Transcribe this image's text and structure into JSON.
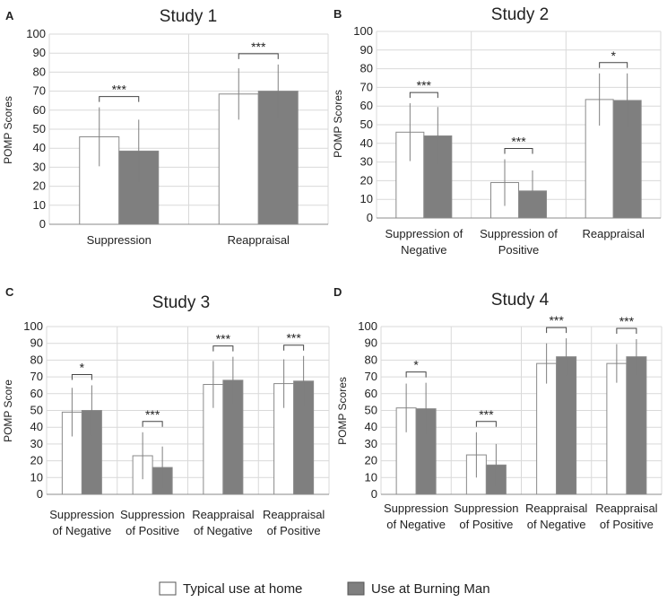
{
  "colors": {
    "home_fill": "#ffffff",
    "bm_fill": "#7f7f7f",
    "bar_stroke": "#8a8a8a"
  },
  "legend": [
    {
      "label": "Typical use at home",
      "color": "#ffffff"
    },
    {
      "label": "Use at Burning Man",
      "color": "#7f7f7f"
    }
  ],
  "chart_data": [
    {
      "panel": "A",
      "type": "bar",
      "title": "Study 1",
      "ylabel": "POMP Scores",
      "xlabel": "",
      "ylim": [
        0,
        100
      ],
      "yticks": [
        0,
        10,
        20,
        30,
        40,
        50,
        60,
        70,
        80,
        90,
        100
      ],
      "categories": [
        [
          "Suppression"
        ],
        [
          "Reappraisal"
        ]
      ],
      "series": [
        {
          "name": "Typical use at home",
          "values": [
            46,
            68.5
          ],
          "errors": [
            15.5,
            13.5
          ]
        },
        {
          "name": "Use at Burning Man",
          "values": [
            38.5,
            70
          ],
          "errors": [
            16.5,
            14
          ]
        }
      ],
      "significance": [
        "***",
        "***"
      ]
    },
    {
      "panel": "B",
      "type": "bar",
      "title": "Study 2",
      "ylabel": "POMP Scores",
      "xlabel": "",
      "ylim": [
        0,
        100
      ],
      "yticks": [
        0,
        10,
        20,
        30,
        40,
        50,
        60,
        70,
        80,
        90,
        100
      ],
      "categories": [
        [
          "Suppression of",
          "Negative"
        ],
        [
          "Suppression of",
          "Positive"
        ],
        [
          "Reappraisal"
        ]
      ],
      "series": [
        {
          "name": "Typical use at home",
          "values": [
            46,
            19,
            63.5
          ],
          "errors": [
            15.5,
            12.5,
            14
          ]
        },
        {
          "name": "Use at Burning Man",
          "values": [
            44,
            14.5,
            63
          ],
          "errors": [
            15.5,
            11,
            14.5
          ]
        }
      ],
      "significance": [
        "***",
        "***",
        "*"
      ]
    },
    {
      "panel": "C",
      "type": "bar",
      "title": "Study 3",
      "ylabel": "POMP Score",
      "xlabel": "",
      "ylim": [
        0,
        100
      ],
      "yticks": [
        0,
        10,
        20,
        30,
        40,
        50,
        60,
        70,
        80,
        90,
        100
      ],
      "categories": [
        [
          "Suppression",
          "of Negative"
        ],
        [
          "Suppression",
          "of Positive"
        ],
        [
          "Reappraisal",
          "of Negative"
        ],
        [
          "Reappraisal",
          "of Positive"
        ]
      ],
      "series": [
        {
          "name": "Typical use at home",
          "values": [
            49,
            23,
            65.5,
            66
          ],
          "errors": [
            14.5,
            14,
            14,
            14.5
          ]
        },
        {
          "name": "Use at Burning Man",
          "values": [
            50,
            16,
            68,
            67.5
          ],
          "errors": [
            15,
            12.5,
            14,
            15
          ]
        }
      ],
      "significance": [
        "*",
        "***",
        "***",
        "***"
      ]
    },
    {
      "panel": "D",
      "type": "bar",
      "title": "Study 4",
      "ylabel": "POMP Scores",
      "xlabel": "",
      "ylim": [
        0,
        100
      ],
      "yticks": [
        0,
        10,
        20,
        30,
        40,
        50,
        60,
        70,
        80,
        90,
        100
      ],
      "categories": [
        [
          "Suppression",
          "of Negative"
        ],
        [
          "Suppression",
          "of Positive"
        ],
        [
          "Reappraisal",
          "of Negative"
        ],
        [
          "Reappraisal",
          "of Positive"
        ]
      ],
      "series": [
        {
          "name": "Typical use at home",
          "values": [
            51.5,
            23.5,
            78,
            78
          ],
          "errors": [
            14.5,
            13.5,
            12,
            11.5
          ]
        },
        {
          "name": "Use at Burning Man",
          "values": [
            51,
            17.5,
            82,
            82
          ],
          "errors": [
            15.5,
            12.5,
            11,
            10.5
          ]
        }
      ],
      "significance": [
        "*",
        "***",
        "***",
        "***"
      ]
    }
  ]
}
